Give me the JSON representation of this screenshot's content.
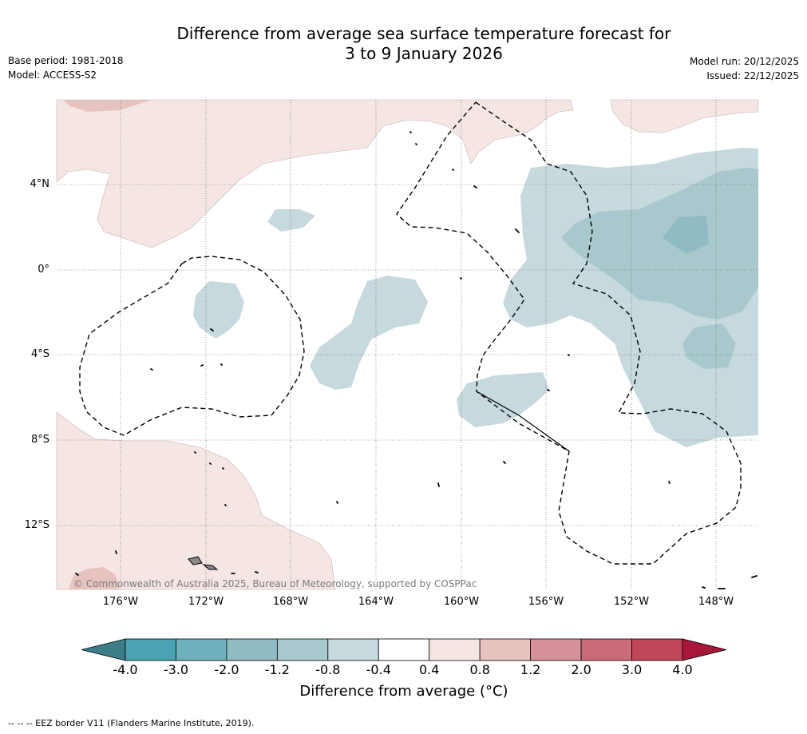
{
  "title": {
    "line1": "Difference from average sea surface temperature forecast for",
    "line2": "3 to 9 January 2026"
  },
  "meta_left": {
    "base_period": "Base period: 1981-2018",
    "model": "Model: ACCESS-S2"
  },
  "meta_right": {
    "model_run": "Model run: 20/12/2025",
    "issued": "Issued: 22/12/2025"
  },
  "axes": {
    "lat_labels": [
      "4°N",
      "0°",
      "4°S",
      "8°S",
      "12°S"
    ],
    "lon_labels": [
      "176°W",
      "172°W",
      "168°W",
      "164°W",
      "160°W",
      "156°W",
      "152°W",
      "148°W"
    ]
  },
  "copyright": "© Commonwealth of Australia 2025, Bureau of Meteorology, supported by COSPPac",
  "colorbar": {
    "ticks": [
      "-4.0",
      "-3.0",
      "-2.0",
      "-1.2",
      "-0.8",
      "-0.4",
      "0.4",
      "0.8",
      "1.2",
      "2.0",
      "3.0",
      "4.0"
    ],
    "colors": [
      "#3b7e87",
      "#4aa3b3",
      "#6eb1bd",
      "#8fbbc2",
      "#a9c8cd",
      "#c6d9dd",
      "#ffffff",
      "#f5e6e4",
      "#e6c3bf",
      "#d6909a",
      "#cb6a78",
      "#c0475a",
      "#a7173a"
    ],
    "title": "Difference from average (°C)"
  },
  "footnote": "--  --  -- EEZ border V11 (Flanders Marine Institute, 2019)."
}
